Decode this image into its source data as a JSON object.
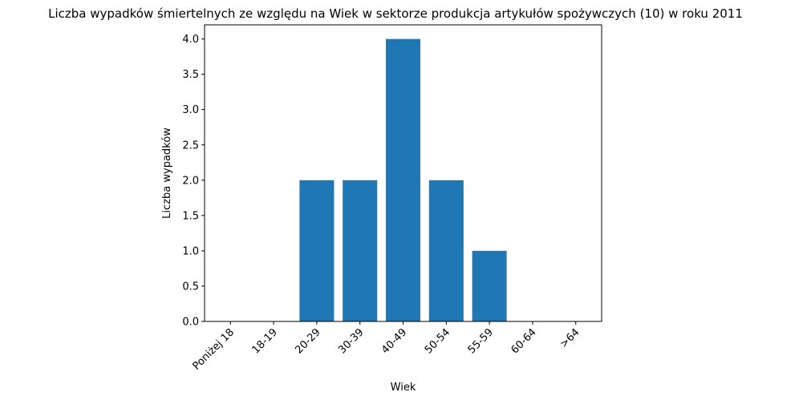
{
  "chart_data": {
    "type": "bar",
    "title": "Liczba wypadków śmiertelnych ze względu na Wiek w sektorze produkcja artykułów spożywczych  (10)   w roku 2011",
    "xlabel": "Wiek",
    "ylabel": "Liczba wypadków",
    "categories": [
      "Poniżej 18",
      "18-19",
      "20-29",
      "30-39",
      "40-49",
      "50-54",
      "55-59",
      "60-64",
      ">64"
    ],
    "values": [
      0,
      0,
      2,
      2,
      4,
      2,
      1,
      0,
      0
    ],
    "ylim": [
      0,
      4.2
    ],
    "yticks": [
      "0.0",
      "0.5",
      "1.0",
      "1.5",
      "2.0",
      "2.5",
      "3.0",
      "3.5",
      "4.0"
    ],
    "bar_color": "#1f77b4",
    "grid": false,
    "legend": false
  }
}
